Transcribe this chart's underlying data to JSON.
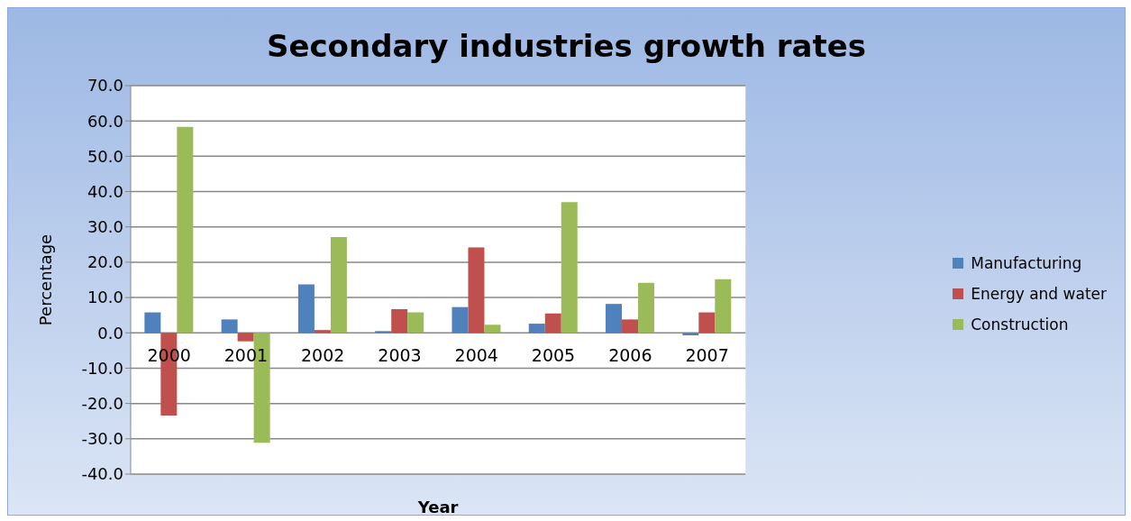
{
  "chart_data": {
    "type": "bar",
    "title": "Secondary industries growth rates",
    "xlabel": "Year",
    "ylabel": "Percentage",
    "categories": [
      "2000",
      "2001",
      "2002",
      "2003",
      "2004",
      "2005",
      "2006",
      "2007"
    ],
    "series": [
      {
        "name": "Manufacturing",
        "color": "#4f81bd",
        "values": [
          5.8,
          3.8,
          13.7,
          0.5,
          7.3,
          2.6,
          8.2,
          -0.7
        ]
      },
      {
        "name": "Energy and water",
        "color": "#c0504d",
        "values": [
          -23.4,
          -2.4,
          0.8,
          6.7,
          24.2,
          5.5,
          3.8,
          5.8
        ]
      },
      {
        "name": "Construction",
        "color": "#9bbb59",
        "values": [
          58.3,
          -31.1,
          27.1,
          5.8,
          2.3,
          37.0,
          14.2,
          15.2
        ]
      }
    ],
    "ylim": [
      -40,
      70
    ],
    "yticks": [
      {
        "value": -40,
        "label": "-40.0"
      },
      {
        "value": -30,
        "label": "-30.0"
      },
      {
        "value": -20,
        "label": "-20.0"
      },
      {
        "value": -10,
        "label": "-10.0"
      },
      {
        "value": 0,
        "label": "0.0"
      },
      {
        "value": 10,
        "label": "10.0"
      },
      {
        "value": 20,
        "label": "20.0"
      },
      {
        "value": 30,
        "label": "30.0"
      },
      {
        "value": 40,
        "label": "40.0"
      },
      {
        "value": 50,
        "label": "50.0"
      },
      {
        "value": 60,
        "label": "60.0"
      },
      {
        "value": 70,
        "label": "70.0"
      }
    ],
    "grid": "y",
    "legend": "right"
  }
}
